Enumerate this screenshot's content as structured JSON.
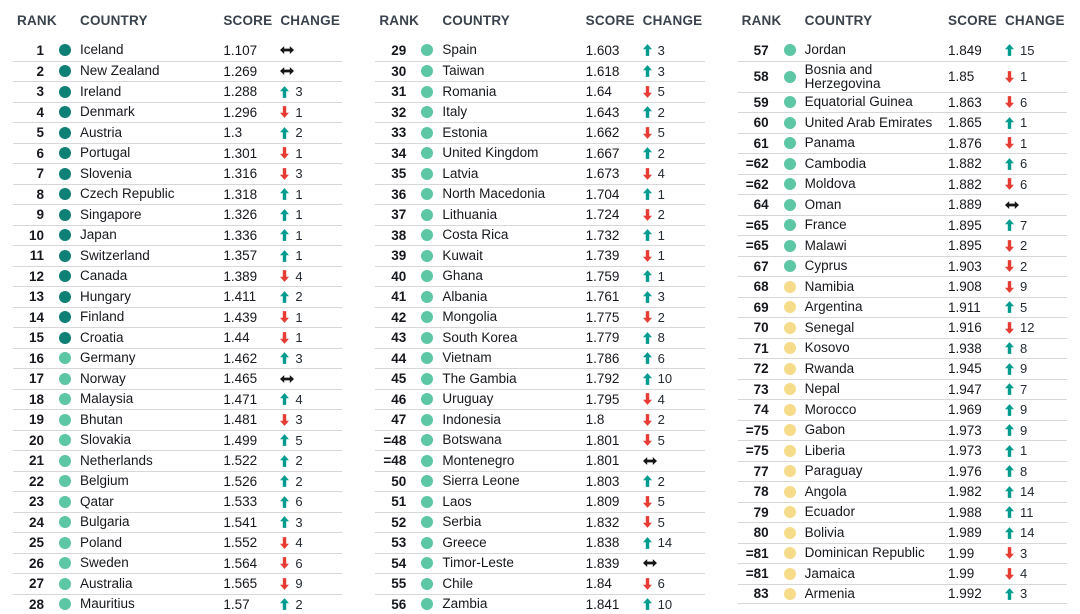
{
  "meta": {
    "tier_colors": {
      "very_high": "#0E8076",
      "high": "#5CC6A5",
      "medium": "#F6DB8B"
    },
    "change_colors": {
      "up": "#009B8F",
      "down": "#E73C33",
      "same": "#161616"
    },
    "arrow_icons": {
      "up": "up-arrow-icon",
      "down": "down-arrow-icon",
      "same": "no-change-arrow-icon"
    }
  },
  "chart_data": {
    "type": "table",
    "columns": [
      "RANK",
      "COUNTRY",
      "SCORE",
      "CHANGE"
    ],
    "tables": [
      {
        "rows": [
          {
            "rank": "1",
            "country": "Iceland",
            "score": "1.107",
            "tier": "very_high",
            "dir": "same",
            "val": ""
          },
          {
            "rank": "2",
            "country": "New Zealand",
            "score": "1.269",
            "tier": "very_high",
            "dir": "same",
            "val": ""
          },
          {
            "rank": "3",
            "country": "Ireland",
            "score": "1.288",
            "tier": "very_high",
            "dir": "up",
            "val": "3"
          },
          {
            "rank": "4",
            "country": "Denmark",
            "score": "1.296",
            "tier": "very_high",
            "dir": "down",
            "val": "1"
          },
          {
            "rank": "5",
            "country": "Austria",
            "score": "1.3",
            "tier": "very_high",
            "dir": "up",
            "val": "2"
          },
          {
            "rank": "6",
            "country": "Portugal",
            "score": "1.301",
            "tier": "very_high",
            "dir": "down",
            "val": "1"
          },
          {
            "rank": "7",
            "country": "Slovenia",
            "score": "1.316",
            "tier": "very_high",
            "dir": "down",
            "val": "3"
          },
          {
            "rank": "8",
            "country": "Czech Republic",
            "score": "1.318",
            "tier": "very_high",
            "dir": "up",
            "val": "1"
          },
          {
            "rank": "9",
            "country": "Singapore",
            "score": "1.326",
            "tier": "very_high",
            "dir": "up",
            "val": "1"
          },
          {
            "rank": "10",
            "country": "Japan",
            "score": "1.336",
            "tier": "very_high",
            "dir": "up",
            "val": "1"
          },
          {
            "rank": "11",
            "country": "Switzerland",
            "score": "1.357",
            "tier": "very_high",
            "dir": "up",
            "val": "1"
          },
          {
            "rank": "12",
            "country": "Canada",
            "score": "1.389",
            "tier": "very_high",
            "dir": "down",
            "val": "4"
          },
          {
            "rank": "13",
            "country": "Hungary",
            "score": "1.411",
            "tier": "very_high",
            "dir": "up",
            "val": "2"
          },
          {
            "rank": "14",
            "country": "Finland",
            "score": "1.439",
            "tier": "very_high",
            "dir": "down",
            "val": "1"
          },
          {
            "rank": "15",
            "country": "Croatia",
            "score": "1.44",
            "tier": "very_high",
            "dir": "down",
            "val": "1"
          },
          {
            "rank": "16",
            "country": "Germany",
            "score": "1.462",
            "tier": "high",
            "dir": "up",
            "val": "3"
          },
          {
            "rank": "17",
            "country": "Norway",
            "score": "1.465",
            "tier": "high",
            "dir": "same",
            "val": ""
          },
          {
            "rank": "18",
            "country": "Malaysia",
            "score": "1.471",
            "tier": "high",
            "dir": "up",
            "val": "4"
          },
          {
            "rank": "19",
            "country": "Bhutan",
            "score": "1.481",
            "tier": "high",
            "dir": "down",
            "val": "3"
          },
          {
            "rank": "20",
            "country": "Slovakia",
            "score": "1.499",
            "tier": "high",
            "dir": "up",
            "val": "5"
          },
          {
            "rank": "21",
            "country": "Netherlands",
            "score": "1.522",
            "tier": "high",
            "dir": "up",
            "val": "2"
          },
          {
            "rank": "22",
            "country": "Belgium",
            "score": "1.526",
            "tier": "high",
            "dir": "up",
            "val": "2"
          },
          {
            "rank": "23",
            "country": "Qatar",
            "score": "1.533",
            "tier": "high",
            "dir": "up",
            "val": "6"
          },
          {
            "rank": "24",
            "country": "Bulgaria",
            "score": "1.541",
            "tier": "high",
            "dir": "up",
            "val": "3"
          },
          {
            "rank": "25",
            "country": "Poland",
            "score": "1.552",
            "tier": "high",
            "dir": "down",
            "val": "4"
          },
          {
            "rank": "26",
            "country": "Sweden",
            "score": "1.564",
            "tier": "high",
            "dir": "down",
            "val": "6"
          },
          {
            "rank": "27",
            "country": "Australia",
            "score": "1.565",
            "tier": "high",
            "dir": "down",
            "val": "9"
          },
          {
            "rank": "28",
            "country": "Mauritius",
            "score": "1.57",
            "tier": "high",
            "dir": "up",
            "val": "2"
          }
        ]
      },
      {
        "rows": [
          {
            "rank": "29",
            "country": "Spain",
            "score": "1.603",
            "tier": "high",
            "dir": "up",
            "val": "3"
          },
          {
            "rank": "30",
            "country": "Taiwan",
            "score": "1.618",
            "tier": "high",
            "dir": "up",
            "val": "3"
          },
          {
            "rank": "31",
            "country": "Romania",
            "score": "1.64",
            "tier": "high",
            "dir": "down",
            "val": "5"
          },
          {
            "rank": "32",
            "country": "Italy",
            "score": "1.643",
            "tier": "high",
            "dir": "up",
            "val": "2"
          },
          {
            "rank": "33",
            "country": "Estonia",
            "score": "1.662",
            "tier": "high",
            "dir": "down",
            "val": "5"
          },
          {
            "rank": "34",
            "country": "United Kingdom",
            "score": "1.667",
            "tier": "high",
            "dir": "up",
            "val": "2"
          },
          {
            "rank": "35",
            "country": "Latvia",
            "score": "1.673",
            "tier": "high",
            "dir": "down",
            "val": "4"
          },
          {
            "rank": "36",
            "country": "North Macedonia",
            "score": "1.704",
            "tier": "high",
            "dir": "up",
            "val": "1"
          },
          {
            "rank": "37",
            "country": "Lithuania",
            "score": "1.724",
            "tier": "high",
            "dir": "down",
            "val": "2"
          },
          {
            "rank": "38",
            "country": "Costa Rica",
            "score": "1.732",
            "tier": "high",
            "dir": "up",
            "val": "1"
          },
          {
            "rank": "39",
            "country": "Kuwait",
            "score": "1.739",
            "tier": "high",
            "dir": "down",
            "val": "1"
          },
          {
            "rank": "40",
            "country": "Ghana",
            "score": "1.759",
            "tier": "high",
            "dir": "up",
            "val": "1"
          },
          {
            "rank": "41",
            "country": "Albania",
            "score": "1.761",
            "tier": "high",
            "dir": "up",
            "val": "3"
          },
          {
            "rank": "42",
            "country": "Mongolia",
            "score": "1.775",
            "tier": "high",
            "dir": "down",
            "val": "2"
          },
          {
            "rank": "43",
            "country": "South Korea",
            "score": "1.779",
            "tier": "high",
            "dir": "up",
            "val": "8"
          },
          {
            "rank": "44",
            "country": "Vietnam",
            "score": "1.786",
            "tier": "high",
            "dir": "up",
            "val": "6"
          },
          {
            "rank": "45",
            "country": "The Gambia",
            "score": "1.792",
            "tier": "high",
            "dir": "up",
            "val": "10"
          },
          {
            "rank": "46",
            "country": "Uruguay",
            "score": "1.795",
            "tier": "high",
            "dir": "down",
            "val": "4"
          },
          {
            "rank": "47",
            "country": "Indonesia",
            "score": "1.8",
            "tier": "high",
            "dir": "down",
            "val": "2"
          },
          {
            "rank": "=48",
            "country": "Botswana",
            "score": "1.801",
            "tier": "high",
            "dir": "down",
            "val": "5"
          },
          {
            "rank": "=48",
            "country": "Montenegro",
            "score": "1.801",
            "tier": "high",
            "dir": "same",
            "val": ""
          },
          {
            "rank": "50",
            "country": "Sierra Leone",
            "score": "1.803",
            "tier": "high",
            "dir": "up",
            "val": "2"
          },
          {
            "rank": "51",
            "country": "Laos",
            "score": "1.809",
            "tier": "high",
            "dir": "down",
            "val": "5"
          },
          {
            "rank": "52",
            "country": "Serbia",
            "score": "1.832",
            "tier": "high",
            "dir": "down",
            "val": "5"
          },
          {
            "rank": "53",
            "country": "Greece",
            "score": "1.838",
            "tier": "high",
            "dir": "up",
            "val": "14"
          },
          {
            "rank": "54",
            "country": "Timor-Leste",
            "score": "1.839",
            "tier": "high",
            "dir": "same",
            "val": ""
          },
          {
            "rank": "55",
            "country": "Chile",
            "score": "1.84",
            "tier": "high",
            "dir": "down",
            "val": "6"
          },
          {
            "rank": "56",
            "country": "Zambia",
            "score": "1.841",
            "tier": "high",
            "dir": "up",
            "val": "10"
          }
        ]
      },
      {
        "rows": [
          {
            "rank": "57",
            "country": "Jordan",
            "score": "1.849",
            "tier": "high",
            "dir": "up",
            "val": "15"
          },
          {
            "rank": "58",
            "country": "Bosnia and Herzegovina",
            "score": "1.85",
            "tier": "high",
            "dir": "down",
            "val": "1"
          },
          {
            "rank": "59",
            "country": "Equatorial Guinea",
            "score": "1.863",
            "tier": "high",
            "dir": "down",
            "val": "6"
          },
          {
            "rank": "60",
            "country": "United Arab Emirates",
            "score": "1.865",
            "tier": "high",
            "dir": "up",
            "val": "1"
          },
          {
            "rank": "61",
            "country": "Panama",
            "score": "1.876",
            "tier": "high",
            "dir": "down",
            "val": "1"
          },
          {
            "rank": "=62",
            "country": "Cambodia",
            "score": "1.882",
            "tier": "high",
            "dir": "up",
            "val": "6"
          },
          {
            "rank": "=62",
            "country": "Moldova",
            "score": "1.882",
            "tier": "high",
            "dir": "down",
            "val": "6"
          },
          {
            "rank": "64",
            "country": "Oman",
            "score": "1.889",
            "tier": "high",
            "dir": "same",
            "val": ""
          },
          {
            "rank": "=65",
            "country": "France",
            "score": "1.895",
            "tier": "high",
            "dir": "up",
            "val": "7"
          },
          {
            "rank": "=65",
            "country": "Malawi",
            "score": "1.895",
            "tier": "high",
            "dir": "down",
            "val": "2"
          },
          {
            "rank": "67",
            "country": "Cyprus",
            "score": "1.903",
            "tier": "high",
            "dir": "down",
            "val": "2"
          },
          {
            "rank": "68",
            "country": "Namibia",
            "score": "1.908",
            "tier": "medium",
            "dir": "down",
            "val": "9"
          },
          {
            "rank": "69",
            "country": "Argentina",
            "score": "1.911",
            "tier": "medium",
            "dir": "up",
            "val": "5"
          },
          {
            "rank": "70",
            "country": "Senegal",
            "score": "1.916",
            "tier": "medium",
            "dir": "down",
            "val": "12"
          },
          {
            "rank": "71",
            "country": "Kosovo",
            "score": "1.938",
            "tier": "medium",
            "dir": "up",
            "val": "8"
          },
          {
            "rank": "72",
            "country": "Rwanda",
            "score": "1.945",
            "tier": "medium",
            "dir": "up",
            "val": "9"
          },
          {
            "rank": "73",
            "country": "Nepal",
            "score": "1.947",
            "tier": "medium",
            "dir": "up",
            "val": "7"
          },
          {
            "rank": "74",
            "country": "Morocco",
            "score": "1.969",
            "tier": "medium",
            "dir": "up",
            "val": "9"
          },
          {
            "rank": "=75",
            "country": "Gabon",
            "score": "1.973",
            "tier": "medium",
            "dir": "up",
            "val": "9"
          },
          {
            "rank": "=75",
            "country": "Liberia",
            "score": "1.973",
            "tier": "medium",
            "dir": "up",
            "val": "1"
          },
          {
            "rank": "77",
            "country": "Paraguay",
            "score": "1.976",
            "tier": "medium",
            "dir": "up",
            "val": "8"
          },
          {
            "rank": "78",
            "country": "Angola",
            "score": "1.982",
            "tier": "medium",
            "dir": "up",
            "val": "14"
          },
          {
            "rank": "79",
            "country": "Ecuador",
            "score": "1.988",
            "tier": "medium",
            "dir": "up",
            "val": "11"
          },
          {
            "rank": "80",
            "country": "Bolivia",
            "score": "1.989",
            "tier": "medium",
            "dir": "up",
            "val": "14"
          },
          {
            "rank": "=81",
            "country": "Dominican Republic",
            "score": "1.99",
            "tier": "medium",
            "dir": "down",
            "val": "3"
          },
          {
            "rank": "=81",
            "country": "Jamaica",
            "score": "1.99",
            "tier": "medium",
            "dir": "down",
            "val": "4"
          },
          {
            "rank": "83",
            "country": "Armenia",
            "score": "1.992",
            "tier": "medium",
            "dir": "up",
            "val": "3"
          }
        ]
      }
    ]
  }
}
